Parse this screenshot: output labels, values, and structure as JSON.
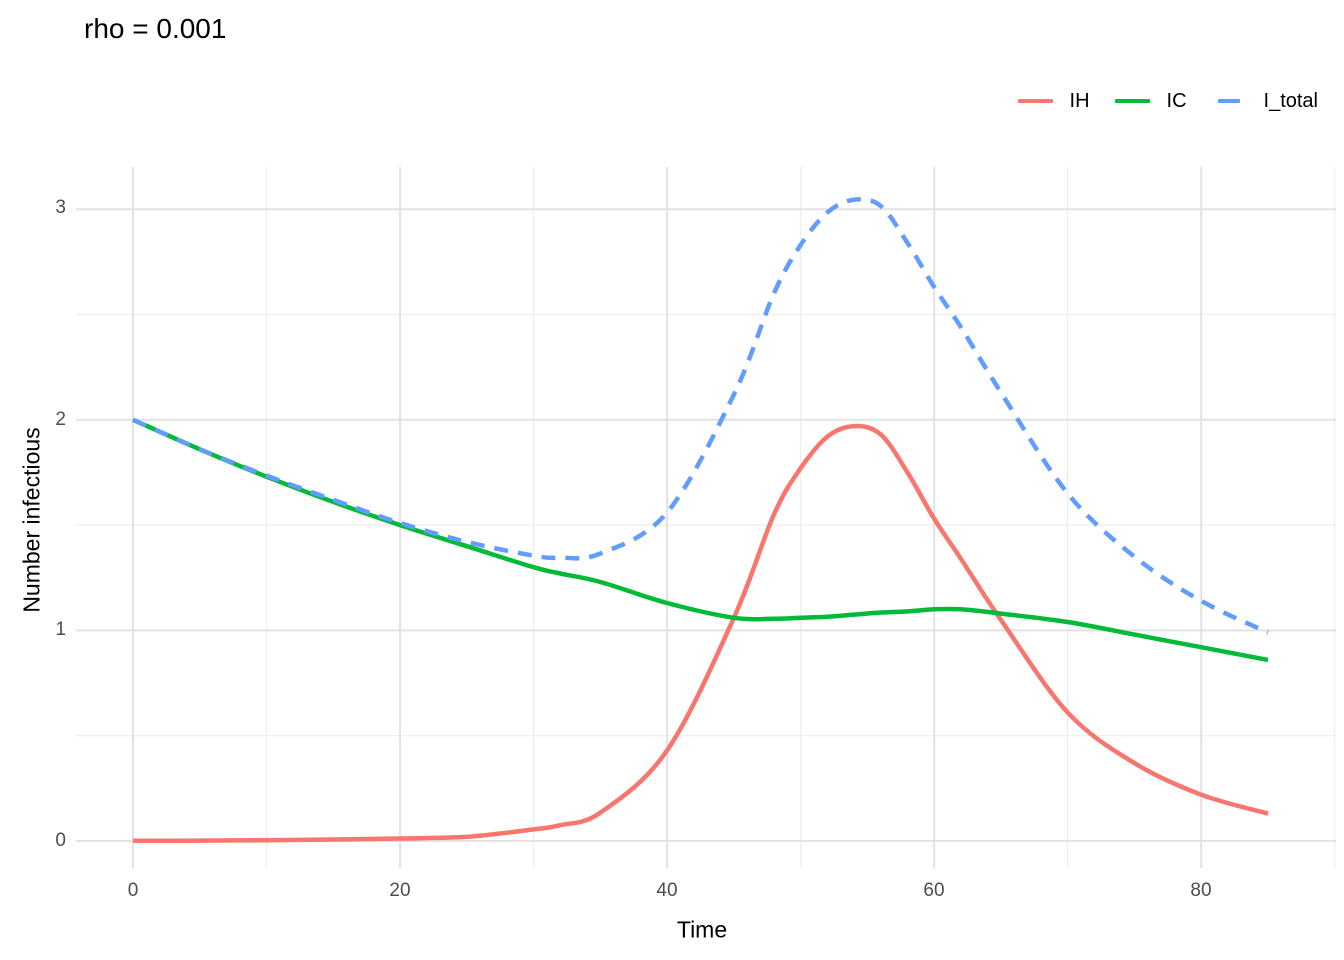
{
  "title": "rho = 0.001",
  "legend": {
    "items": [
      {
        "label": "IH",
        "color": "#F8766D",
        "dashed": false
      },
      {
        "label": "IC",
        "color": "#00BA38",
        "dashed": false
      },
      {
        "label": "I_total",
        "color": "#619CFF",
        "dashed": true
      }
    ]
  },
  "axes": {
    "x": {
      "title": "Time",
      "ticks": [
        "0",
        "20",
        "40",
        "60",
        "80"
      ]
    },
    "y": {
      "title": "Number infectious",
      "ticks": [
        "0",
        "1",
        "2",
        "3"
      ]
    }
  },
  "colors": {
    "background": "#FFFFFF",
    "grid_major": "#E2E2E2",
    "grid_minor": "#EDEDED",
    "tick_label": "#4D4D4D",
    "text": "#000000"
  },
  "chart_data": {
    "type": "line",
    "title": "rho = 0.001",
    "xlabel": "Time",
    "ylabel": "Number infectious",
    "xlim": [
      0,
      90
    ],
    "ylim": [
      -0.15,
      3.2
    ],
    "x_major": [
      0,
      20,
      40,
      60,
      80
    ],
    "x_minor": [
      10,
      30,
      50,
      70,
      90
    ],
    "y_major": [
      0,
      1,
      2,
      3
    ],
    "y_minor": [
      0.5,
      1.5,
      2.5
    ],
    "grid": true,
    "legend_position": "top-right",
    "x": [
      0,
      5,
      10,
      15,
      20,
      25,
      30,
      32,
      35,
      40,
      45,
      48,
      50,
      52,
      54,
      56,
      58,
      60,
      62,
      65,
      70,
      75,
      80,
      85
    ],
    "series": [
      {
        "name": "IH",
        "color": "#F8766D",
        "linetype": "solid",
        "values": [
          0.001,
          0.002,
          0.004,
          0.007,
          0.012,
          0.02,
          0.055,
          0.075,
          0.135,
          0.43,
          1.06,
          1.55,
          1.77,
          1.92,
          1.97,
          1.93,
          1.75,
          1.53,
          1.34,
          1.05,
          0.61,
          0.37,
          0.22,
          0.13
        ]
      },
      {
        "name": "IC",
        "color": "#00BA38",
        "linetype": "solid",
        "values": [
          2.0,
          1.86,
          1.73,
          1.61,
          1.5,
          1.4,
          1.3,
          1.27,
          1.23,
          1.13,
          1.06,
          1.055,
          1.06,
          1.065,
          1.075,
          1.085,
          1.09,
          1.1,
          1.1,
          1.08,
          1.04,
          0.98,
          0.92,
          0.86
        ]
      },
      {
        "name": "I_total",
        "color": "#619CFF",
        "linetype": "dashed",
        "values": [
          2.0,
          1.86,
          1.735,
          1.62,
          1.51,
          1.42,
          1.355,
          1.345,
          1.365,
          1.56,
          2.12,
          2.6,
          2.83,
          2.985,
          3.045,
          3.015,
          2.84,
          2.63,
          2.44,
          2.13,
          1.65,
          1.35,
          1.14,
          0.99
        ]
      }
    ]
  }
}
